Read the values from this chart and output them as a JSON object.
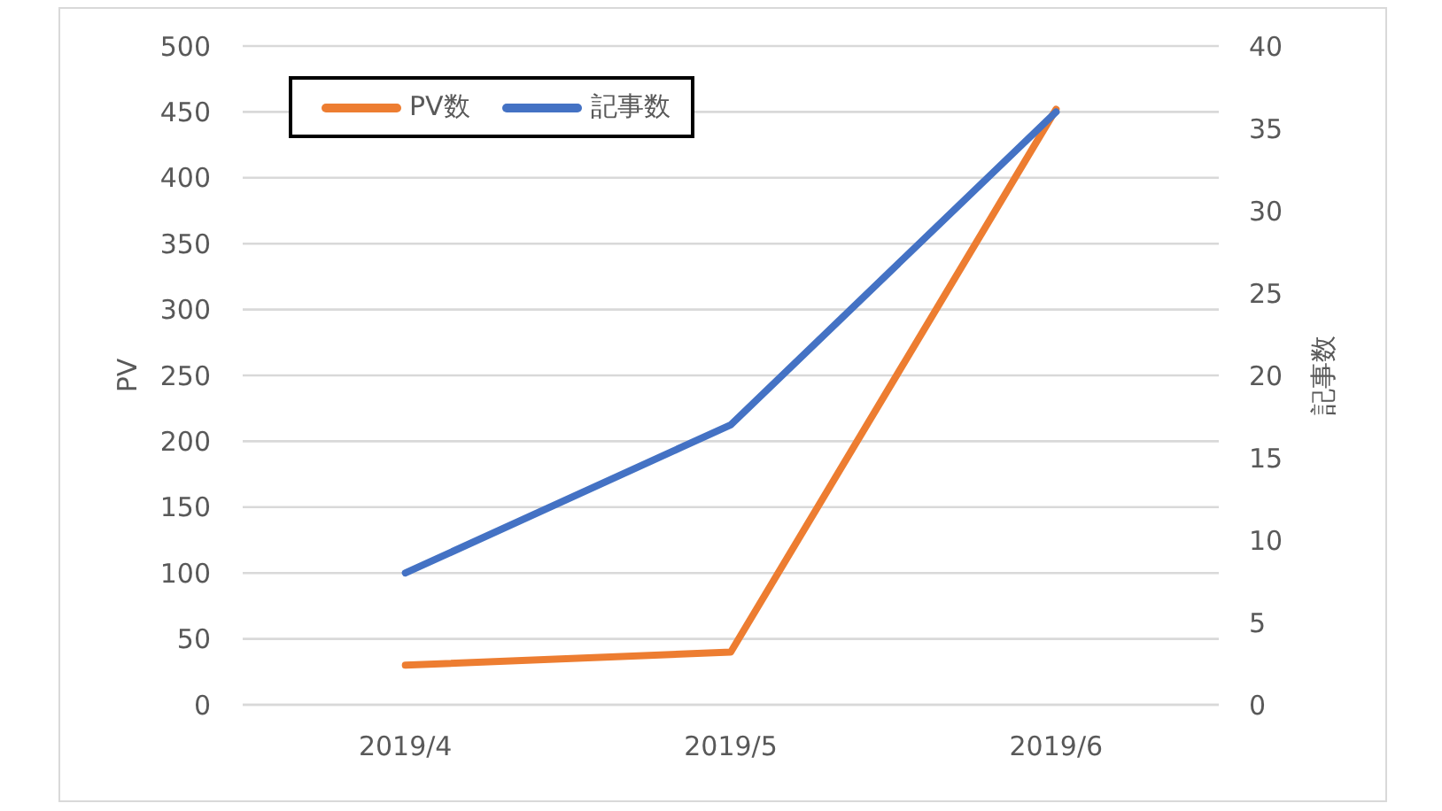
{
  "chart_data": {
    "type": "line",
    "categories": [
      "2019/4",
      "2019/5",
      "2019/6"
    ],
    "series": [
      {
        "name": "PV数",
        "color": "#ed7d31",
        "values": [
          30,
          40,
          452
        ]
      },
      {
        "name": "記事数",
        "color": "#4472c4",
        "values": [
          8,
          17,
          36
        ],
        "axis": "y2"
      }
    ],
    "ylabel": "PV",
    "y2label": "記事数",
    "ylim": [
      0,
      500
    ],
    "yticks": [
      0,
      50,
      100,
      150,
      200,
      250,
      300,
      350,
      400,
      450,
      500
    ],
    "y2lim": [
      0,
      40
    ],
    "y2ticks": [
      0,
      5,
      10,
      15,
      20,
      25,
      30,
      35,
      40
    ],
    "grid": "y",
    "legend": "top left",
    "marker": "none",
    "line_style": "solid"
  }
}
